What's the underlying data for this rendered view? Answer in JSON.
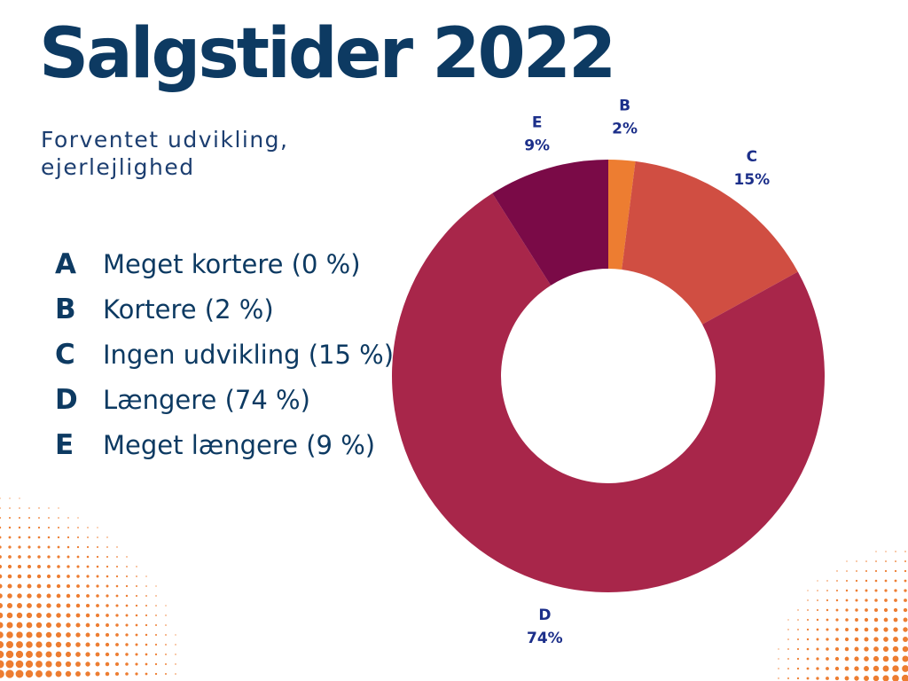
{
  "title": "Salgstider 2022",
  "subtitle": "Forventet udvikling, ejerlejlighed",
  "legend": [
    {
      "letter": "A",
      "text": "Meget kortere (0 %)"
    },
    {
      "letter": "B",
      "text": "Kortere (2 %)"
    },
    {
      "letter": "C",
      "text": "Ingen udvikling (15 %)"
    },
    {
      "letter": "D",
      "text": "Længere (74 %)"
    },
    {
      "letter": "E",
      "text": "Meget længere (9 %)"
    }
  ],
  "chart_data": {
    "type": "pie",
    "donut": true,
    "title": "",
    "slices": [
      {
        "label": "B",
        "value_label": "2%",
        "value": 2,
        "color": "#ed7d31"
      },
      {
        "label": "C",
        "value_label": "15%",
        "value": 15,
        "color": "#d04e42"
      },
      {
        "label": "D",
        "value_label": "74%",
        "value": 74,
        "color": "#a8264a"
      },
      {
        "label": "E",
        "value_label": "9%",
        "value": 9,
        "color": "#7a0a47"
      }
    ]
  },
  "colors": {
    "title": "#0d3a62",
    "label": "#1c2f8a",
    "dots": "#ed7d31"
  }
}
